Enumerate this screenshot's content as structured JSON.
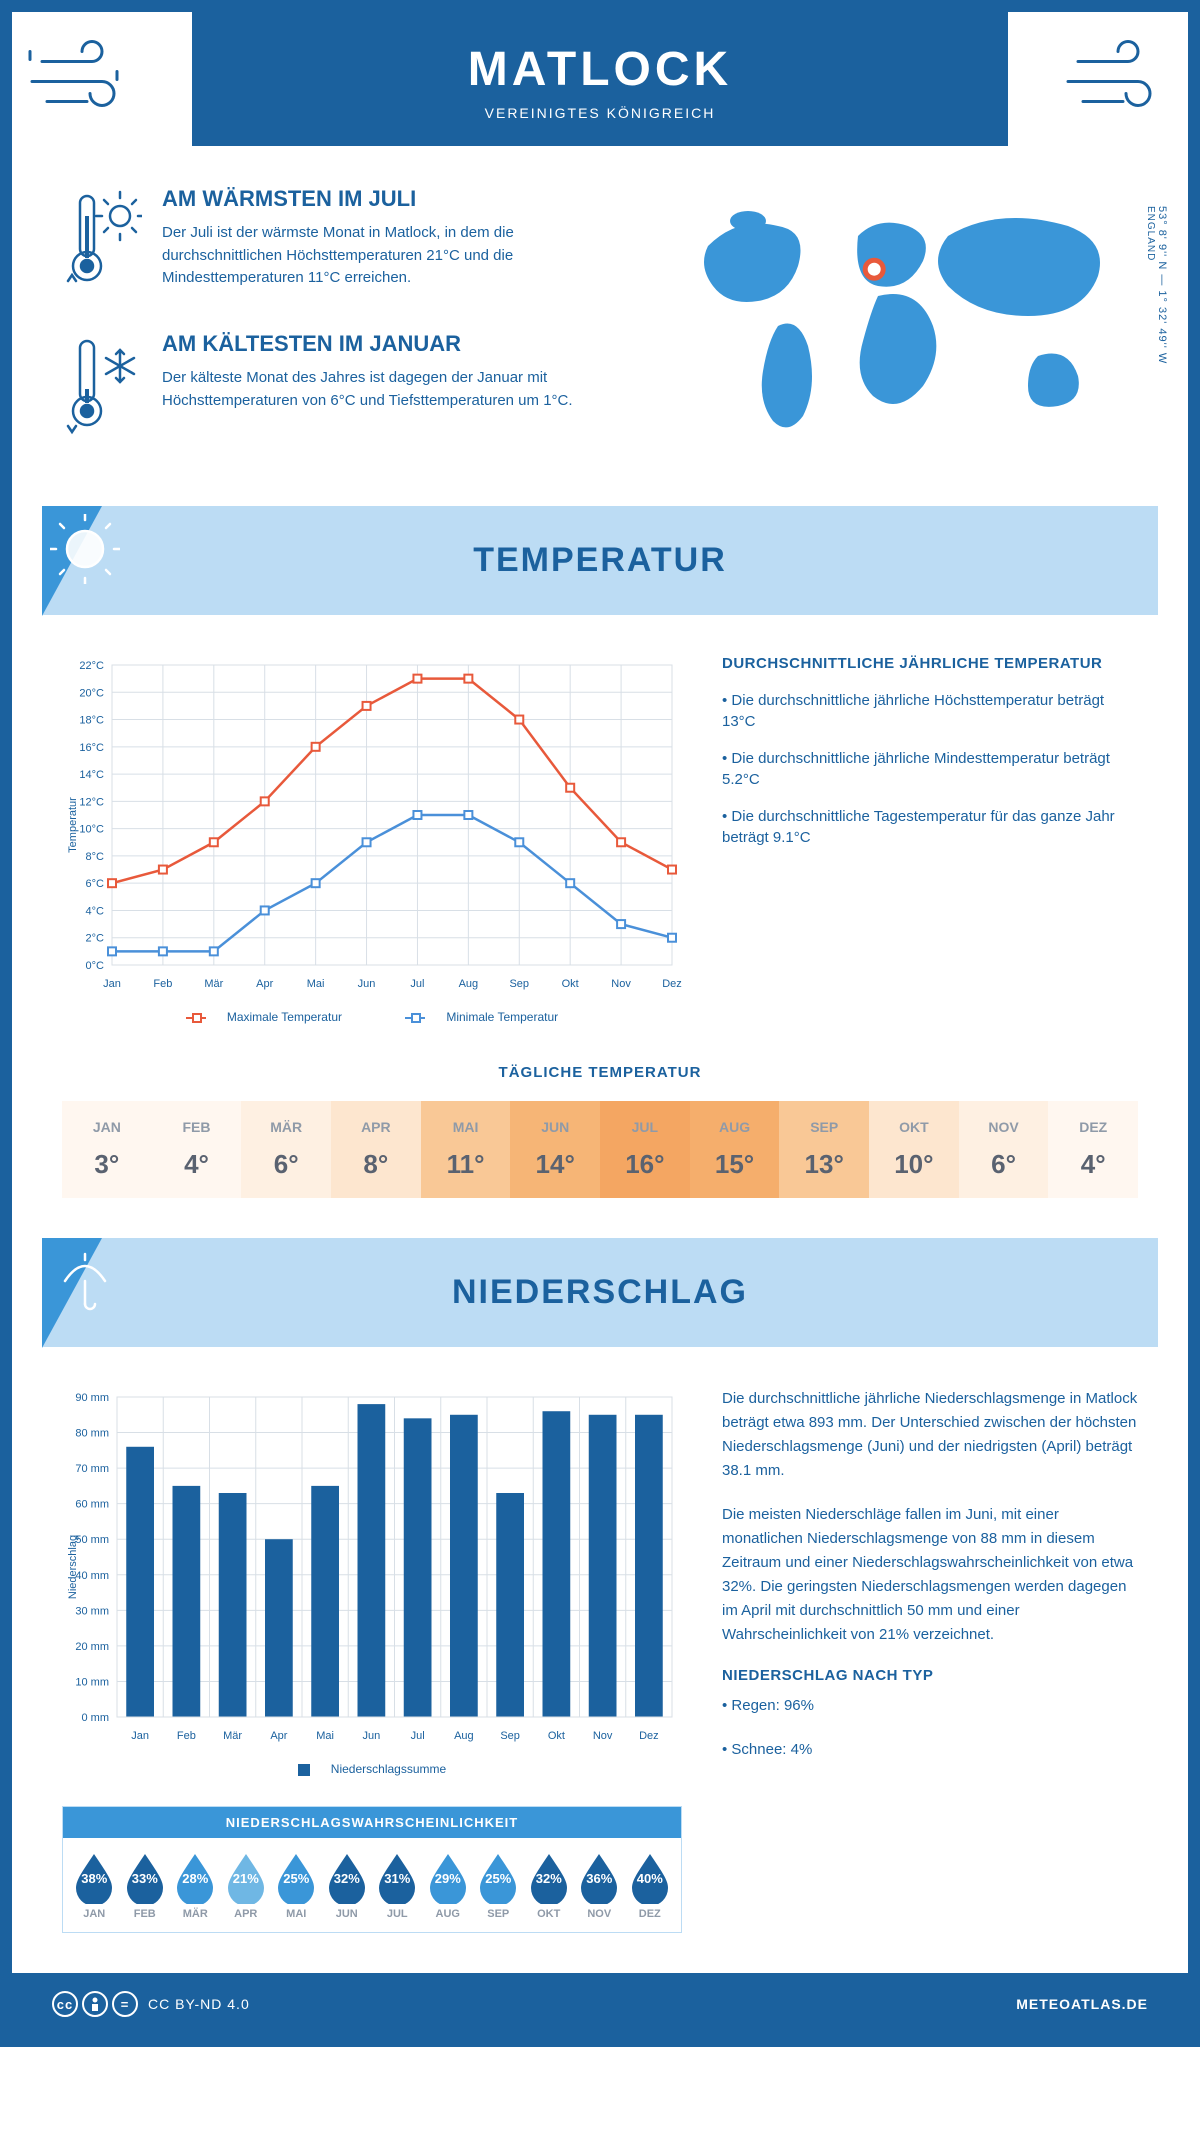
{
  "colors": {
    "primary": "#1b619e",
    "light_blue": "#bcdcf4",
    "mid_blue": "#3a96d8",
    "accent_red": "#e8593b",
    "accent_blue": "#4a90d9",
    "grid": "#d8dfe6",
    "text_gray": "#8f9aa8",
    "value_gray": "#5a6270"
  },
  "header": {
    "title": "MATLOCK",
    "subtitle": "VEREINIGTES KÖNIGREICH"
  },
  "map": {
    "coords": "53° 8' 9'' N — 1° 32' 49'' W",
    "region": "ENGLAND",
    "marker_x": 0.47,
    "marker_y": 0.32
  },
  "facts": {
    "warm": {
      "title": "AM WÄRMSTEN IM JULI",
      "text": "Der Juli ist der wärmste Monat in Matlock, in dem die durchschnittlichen Höchsttemperaturen 21°C und die Mindesttemperaturen 11°C erreichen."
    },
    "cold": {
      "title": "AM KÄLTESTEN IM JANUAR",
      "text": "Der kälteste Monat des Jahres ist dagegen der Januar mit Höchsttemperaturen von 6°C und Tiefsttemperaturen um 1°C."
    }
  },
  "temp_section": {
    "title": "TEMPERATUR",
    "chart": {
      "months": [
        "Jan",
        "Feb",
        "Mär",
        "Apr",
        "Mai",
        "Jun",
        "Jul",
        "Aug",
        "Sep",
        "Okt",
        "Nov",
        "Dez"
      ],
      "max_series": [
        6,
        7,
        9,
        12,
        16,
        19,
        21,
        21,
        18,
        13,
        9,
        7
      ],
      "min_series": [
        1,
        1,
        1,
        4,
        6,
        9,
        11,
        11,
        9,
        6,
        3,
        2
      ],
      "ylim": [
        0,
        22
      ],
      "ytick_step": 2,
      "max_color": "#e8593b",
      "min_color": "#4a90d9",
      "ylabel": "Temperatur",
      "legend_max": "Maximale Temperatur",
      "legend_min": "Minimale Temperatur"
    },
    "info": {
      "heading": "DURCHSCHNITTLICHE JÄHRLICHE TEMPERATUR",
      "b1": "• Die durchschnittliche jährliche Höchsttemperatur beträgt 13°C",
      "b2": "• Die durchschnittliche jährliche Mindesttemperatur beträgt 5.2°C",
      "b3": "• Die durchschnittliche Tagestemperatur für das ganze Jahr beträgt 9.1°C"
    },
    "daily": {
      "heading": "TÄGLICHE TEMPERATUR",
      "months": [
        "JAN",
        "FEB",
        "MÄR",
        "APR",
        "MAI",
        "JUN",
        "JUL",
        "AUG",
        "SEP",
        "OKT",
        "NOV",
        "DEZ"
      ],
      "values": [
        "3°",
        "4°",
        "6°",
        "8°",
        "11°",
        "14°",
        "16°",
        "15°",
        "13°",
        "10°",
        "6°",
        "4°"
      ],
      "cell_colors": [
        "#fff7f0",
        "#fff7f0",
        "#fef0e2",
        "#fde6cf",
        "#f9c896",
        "#f6b576",
        "#f4a662",
        "#f5ae6c",
        "#f9c896",
        "#fde6cf",
        "#fef0e2",
        "#fff7f0"
      ]
    }
  },
  "precip_section": {
    "title": "NIEDERSCHLAG",
    "chart": {
      "months": [
        "Jan",
        "Feb",
        "Mär",
        "Apr",
        "Mai",
        "Jun",
        "Jul",
        "Aug",
        "Sep",
        "Okt",
        "Nov",
        "Dez"
      ],
      "values": [
        76,
        65,
        63,
        50,
        65,
        88,
        84,
        85,
        63,
        86,
        85,
        85
      ],
      "ylim": [
        0,
        90
      ],
      "ytick_step": 10,
      "bar_color": "#1b619e",
      "ylabel": "Niederschlag",
      "legend": "Niederschlagssumme"
    },
    "text": {
      "p1": "Die durchschnittliche jährliche Niederschlagsmenge in Matlock beträgt etwa 893 mm. Der Unterschied zwischen der höchsten Niederschlagsmenge (Juni) und der niedrigsten (April) beträgt 38.1 mm.",
      "p2": "Die meisten Niederschläge fallen im Juni, mit einer monatlichen Niederschlagsmenge von 88 mm in diesem Zeitraum und einer Niederschlagswahrscheinlichkeit von etwa 32%. Die geringsten Niederschlagsmengen werden dagegen im April mit durchschnittlich 50 mm und einer Wahrscheinlichkeit von 21% verzeichnet.",
      "type_heading": "NIEDERSCHLAG NACH TYP",
      "type1": "• Regen: 96%",
      "type2": "• Schnee: 4%"
    },
    "prob": {
      "heading": "NIEDERSCHLAGSWAHRSCHEINLICHKEIT",
      "months": [
        "JAN",
        "FEB",
        "MÄR",
        "APR",
        "MAI",
        "JUN",
        "JUL",
        "AUG",
        "SEP",
        "OKT",
        "NOV",
        "DEZ"
      ],
      "values": [
        "38%",
        "33%",
        "28%",
        "21%",
        "25%",
        "32%",
        "31%",
        "29%",
        "25%",
        "32%",
        "36%",
        "40%"
      ],
      "colors": [
        "#1b619e",
        "#1b619e",
        "#3a96d8",
        "#6fb7e4",
        "#3a96d8",
        "#1b619e",
        "#1b619e",
        "#3a96d8",
        "#3a96d8",
        "#1b619e",
        "#1b619e",
        "#1b619e"
      ]
    }
  },
  "footer": {
    "license": "CC BY-ND 4.0",
    "site": "METEOATLAS.DE"
  }
}
